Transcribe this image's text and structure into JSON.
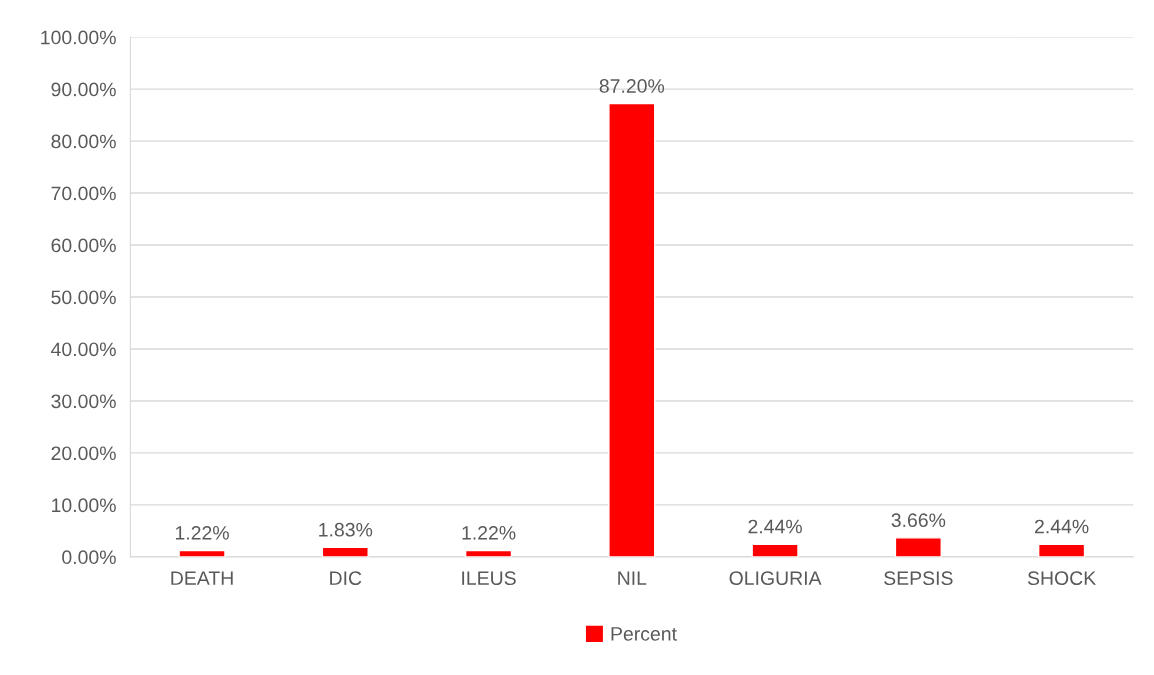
{
  "chart_data": {
    "type": "bar",
    "categories": [
      "DEATH",
      "DIC",
      "ILEUS",
      "NIL",
      "OLIGURIA",
      "SEPSIS",
      "SHOCK"
    ],
    "series": [
      {
        "name": "Percent",
        "color": "#ff0000",
        "values": [
          1.22,
          1.83,
          1.22,
          87.2,
          2.44,
          3.66,
          2.44
        ],
        "value_labels": [
          "1.22%",
          "1.83%",
          "1.22%",
          "87.20%",
          "2.44%",
          "3.66%",
          "2.44%"
        ]
      }
    ],
    "ylim": [
      0,
      100
    ],
    "yticks": [
      {
        "value": 0,
        "label": "0.00%"
      },
      {
        "value": 10,
        "label": "10.00%"
      },
      {
        "value": 20,
        "label": "20.00%"
      },
      {
        "value": 30,
        "label": "30.00%"
      },
      {
        "value": 40,
        "label": "40.00%"
      },
      {
        "value": 50,
        "label": "50.00%"
      },
      {
        "value": 60,
        "label": "60.00%"
      },
      {
        "value": 70,
        "label": "70.00%"
      },
      {
        "value": 80,
        "label": "80.00%"
      },
      {
        "value": 90,
        "label": "90.00%"
      },
      {
        "value": 100,
        "label": "100.00%"
      }
    ],
    "grid": "y",
    "legend": "bottom"
  }
}
